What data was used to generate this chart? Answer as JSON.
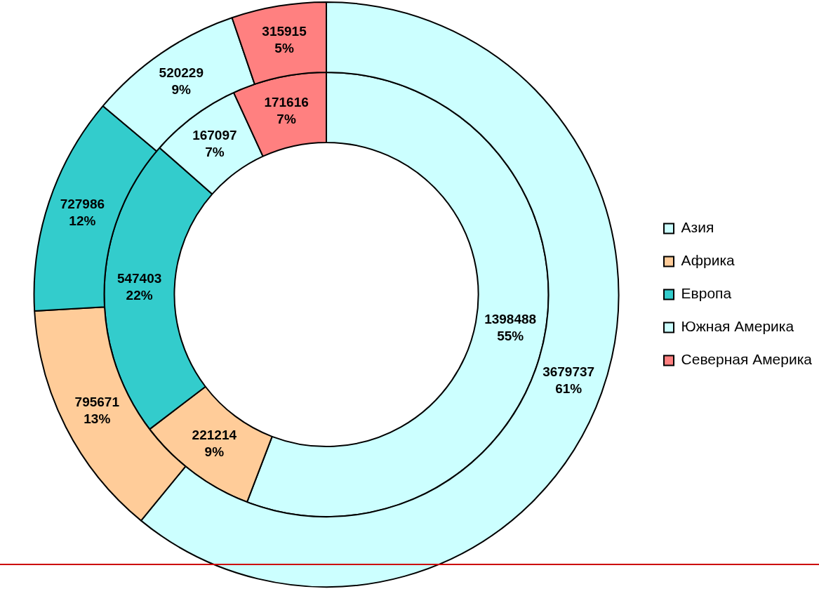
{
  "chart_data": {
    "type": "donut",
    "categories": [
      "Азия",
      "Африка",
      "Европа",
      "Южная Америка",
      "Северная Америка"
    ],
    "colors": [
      "#ccffff",
      "#ffcc99",
      "#33cccc",
      "#ccffff",
      "#ff8080"
    ],
    "series": [
      {
        "values": [
          3679737,
          795671,
          727986,
          520229,
          315915
        ],
        "value_labels": [
          "3679737\n61%",
          "795671\n13%",
          "727986\n12%",
          "520229\n9%",
          "315915\n5%"
        ]
      },
      {
        "values": [
          1398488,
          221214,
          547403,
          167097,
          171616
        ],
        "value_labels": [
          "1398488\n55%",
          "221214\n9%",
          "547403\n22%",
          "167097\n7%",
          "171616\n7%"
        ]
      }
    ],
    "legend": "right"
  }
}
